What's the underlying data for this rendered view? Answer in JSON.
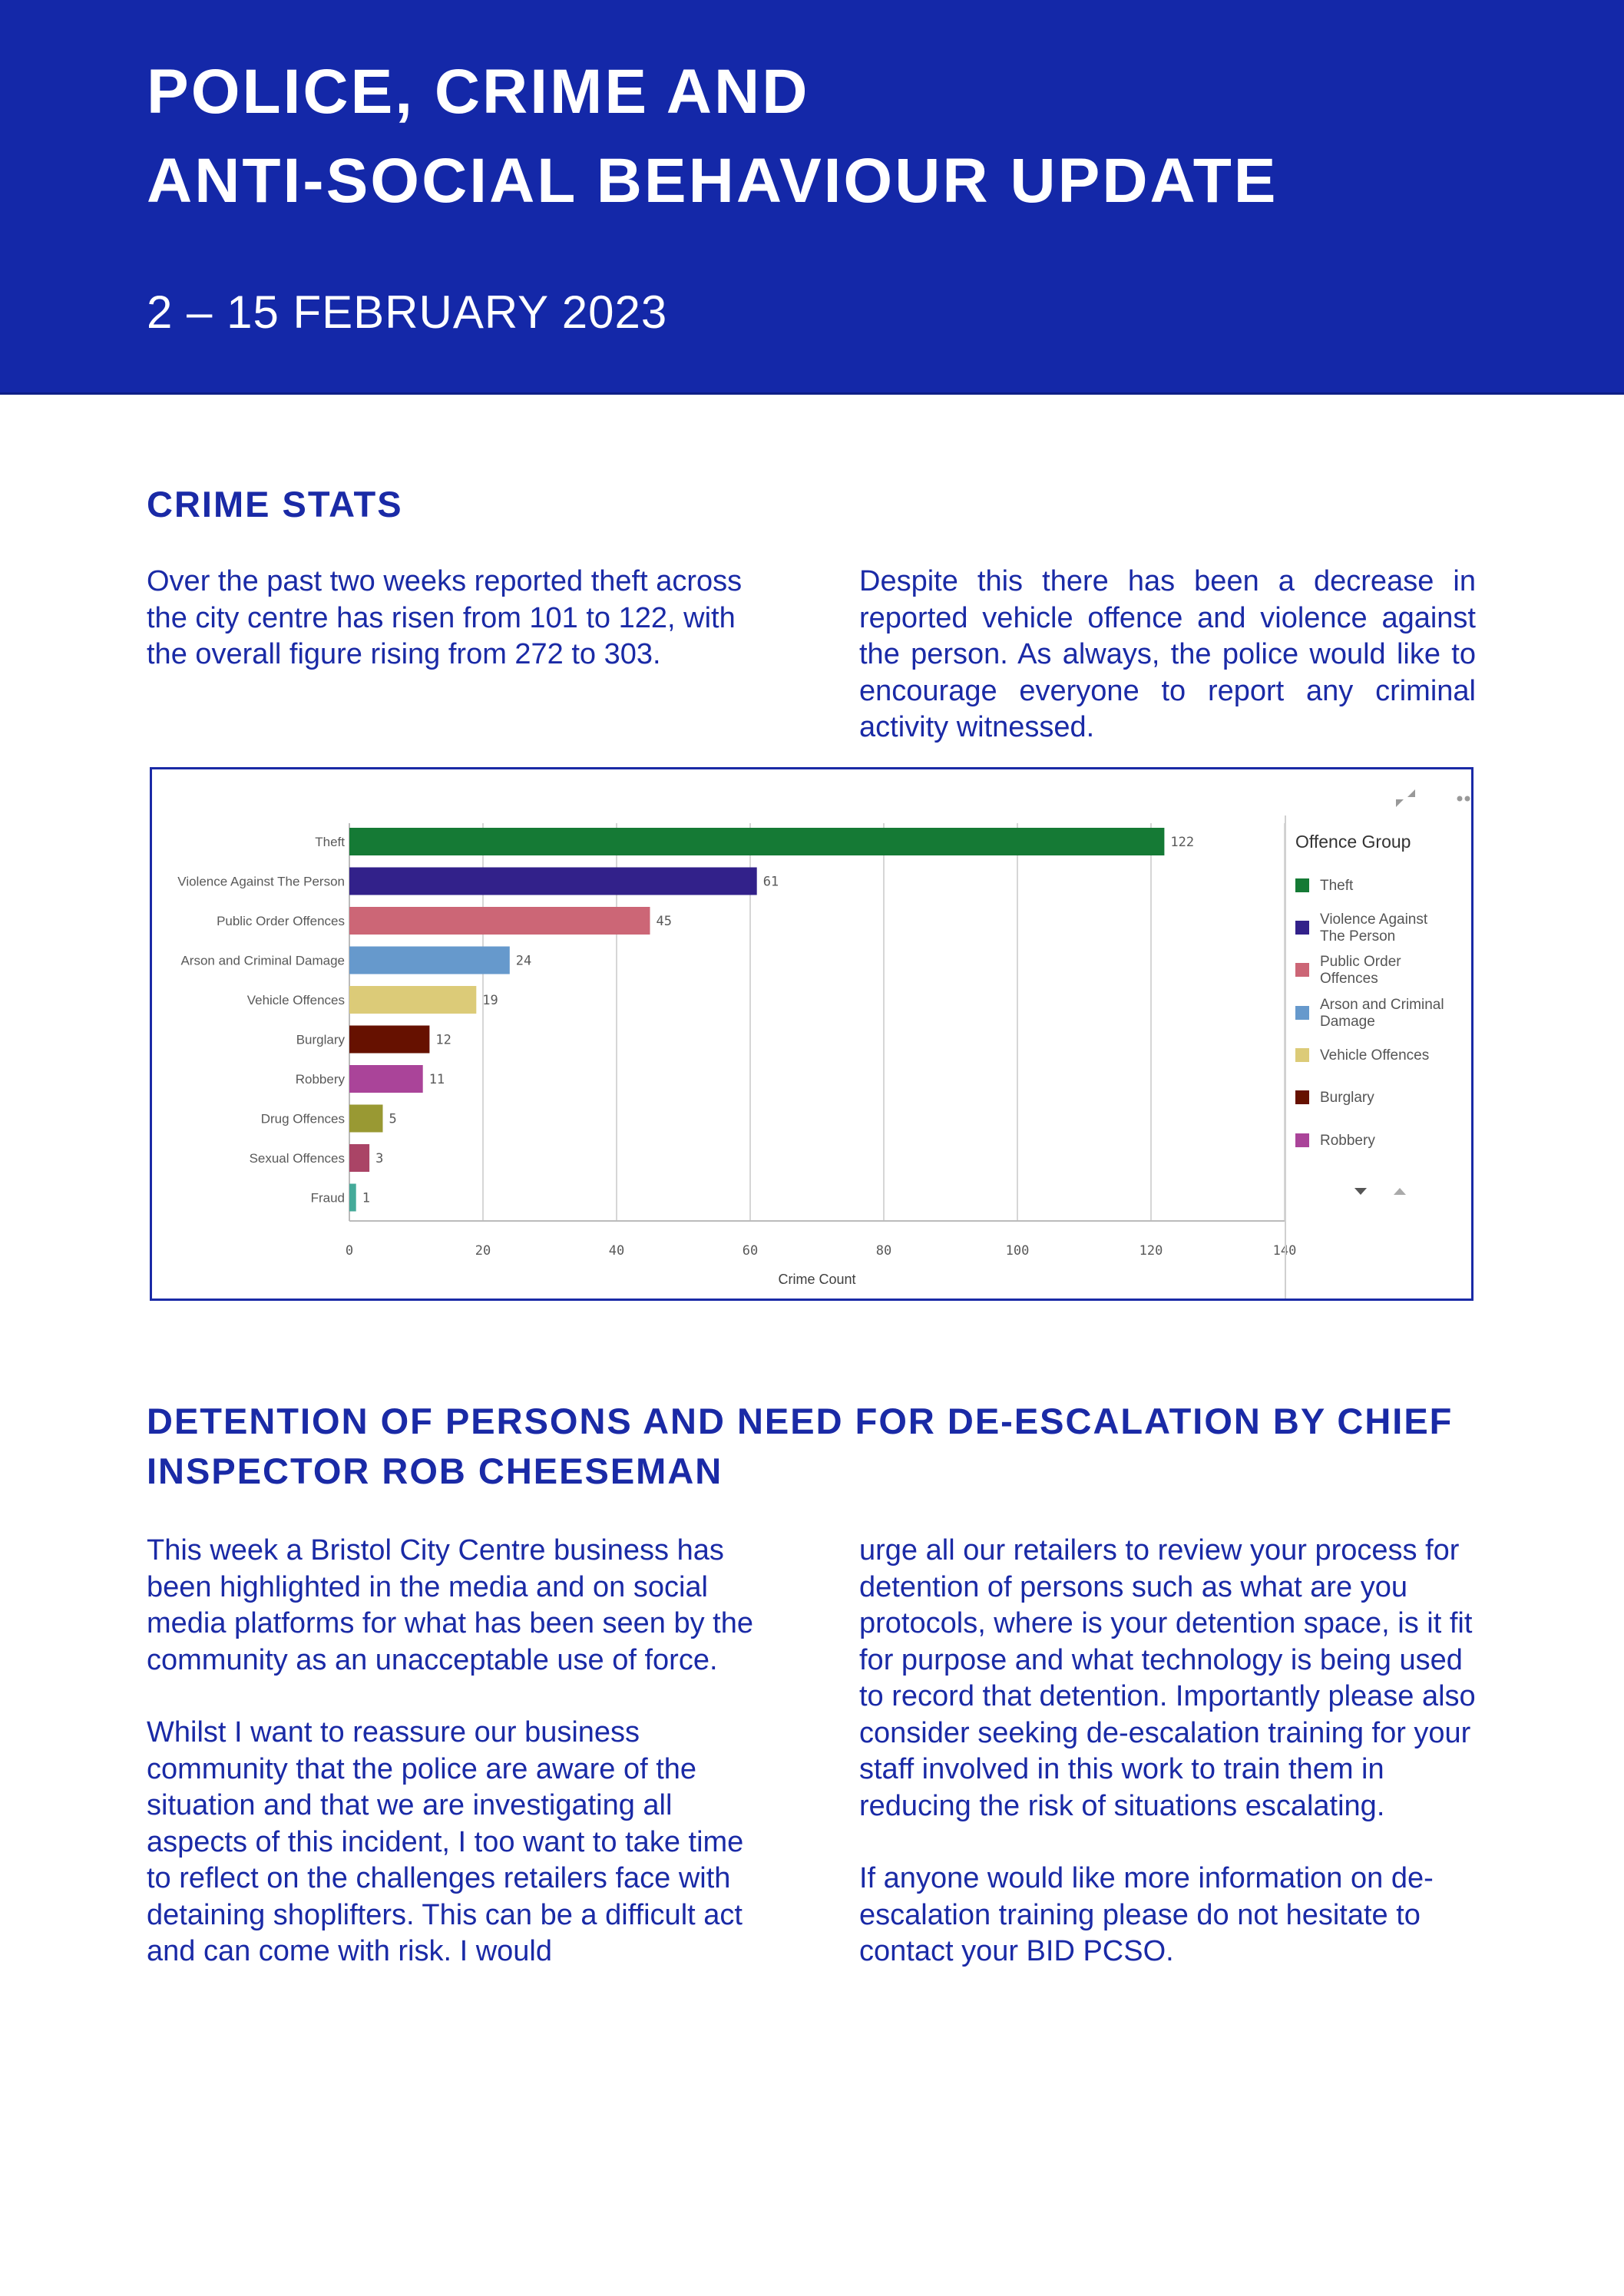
{
  "header": {
    "title_line1": "POLICE, CRIME AND",
    "title_line2": "ANTI-SOCIAL BEHAVIOUR UPDATE",
    "date": "2 – 15 FEBRUARY 2023",
    "background_color": "#1428a8"
  },
  "crime_stats": {
    "heading": "CRIME STATS",
    "left_text": "Over the past two weeks reported theft across the city centre has risen from 101 to 122, with the overall figure rising from 272 to 303.",
    "right_text": "Despite this there has been a decrease in reported vehicle offence and violence against the person. As always, the police would like to encourage everyone to report any criminal activity witnessed."
  },
  "chart_data": {
    "type": "bar",
    "orientation": "horizontal",
    "categories": [
      "Theft",
      "Violence Against The Person",
      "Public Order Offences",
      "Arson and Criminal Damage",
      "Vehicle Offences",
      "Burglary",
      "Robbery",
      "Drug Offences",
      "Sexual Offences",
      "Fraud"
    ],
    "values": [
      122,
      61,
      45,
      24,
      19,
      12,
      11,
      5,
      3,
      1
    ],
    "colors": [
      "#157a35",
      "#32218a",
      "#cc6676",
      "#6699cc",
      "#dccb78",
      "#661100",
      "#aa4499",
      "#999933",
      "#aa4466",
      "#44aa99"
    ],
    "xlabel": "Crime Count",
    "ylabel": "",
    "xlim": [
      0,
      140
    ],
    "xticks": [
      0,
      20,
      40,
      60,
      80,
      100,
      120,
      140
    ],
    "grid": true,
    "data_labels": true,
    "legend": {
      "title": "Offence Group",
      "placement": "right",
      "items": [
        "Theft",
        "Violence Against The Person",
        "Public Order Offences",
        "Arson and Criminal Damage",
        "Vehicle Offences",
        "Burglary",
        "Robbery"
      ],
      "items_wrapped": [
        [
          "Theft"
        ],
        [
          "Violence Against",
          "The Person"
        ],
        [
          "Public Order",
          "Offences"
        ],
        [
          "Arson and Criminal",
          "Damage"
        ],
        [
          "Vehicle Offences"
        ],
        [
          "Burglary"
        ],
        [
          "Robbery"
        ]
      ]
    },
    "icons": [
      "collapse-icon",
      "more-options-icon",
      "scroll-down-icon",
      "scroll-up-icon"
    ]
  },
  "detention": {
    "heading_line1": "DETENTION OF PERSONS AND NEED FOR DE-ESCALATION BY CHIEF",
    "heading_line2": "INSPECTOR ROB CHEESEMAN",
    "left_p1": "This week a Bristol City Centre business has been highlighted in the media and on social media platforms for what has been seen by the community as an unacceptable use of force.",
    "left_p2": "Whilst I want to reassure our business community that the police are aware of the situation and that we are investigating all aspects of this incident, I too want to take time to reflect on the challenges retailers face with detaining shoplifters. This can be a difficult act and can come with risk. I would",
    "right_p1": "urge all our retailers to review your process for detention of persons such as what are you protocols, where is your detention space, is it fit for purpose and what technology is being used to record that detention. Importantly please also consider seeking de-escalation training for your staff involved in this work to train them in reducing the risk of situations escalating.",
    "right_p2": "If anyone would like more information on de-escalation training please do not hesitate to contact your BID PCSO."
  }
}
